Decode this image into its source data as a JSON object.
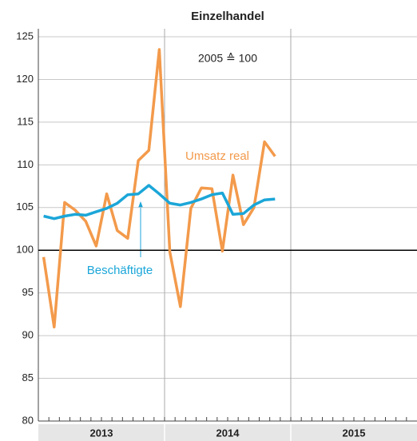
{
  "chart_data": {
    "type": "line",
    "title": "Einzelhandel",
    "note": "2005 ≙ 100",
    "categories": [
      null,
      null,
      null,
      null,
      null,
      null,
      null,
      null,
      null,
      null,
      null,
      null,
      null,
      null,
      null,
      null,
      null,
      null,
      null,
      null,
      null,
      null,
      null,
      null,
      null,
      null,
      null,
      null,
      null,
      null,
      null,
      null,
      null,
      null,
      null,
      null
    ],
    "year_labels": [
      "2013",
      "2014",
      "2015"
    ],
    "series": [
      {
        "name": "Umsatz real",
        "color": "#f39a4b",
        "values": [
          99.2,
          91,
          105.6,
          104.7,
          103.4,
          100.5,
          106.6,
          102.3,
          101.4,
          110.5,
          111.7,
          123.5,
          99.8,
          93.4,
          104.9,
          107.3,
          107.2,
          99.9,
          108.8,
          103,
          105,
          112.7,
          111,
          null,
          null,
          null,
          null,
          null,
          null,
          null,
          null,
          null,
          null,
          null,
          null,
          null
        ]
      },
      {
        "name": "Beschäftigte",
        "color": "#1ba6d8",
        "values": [
          104,
          103.7,
          104,
          104.2,
          104.1,
          104.5,
          104.9,
          105.5,
          106.5,
          106.6,
          107.6,
          106.6,
          105.5,
          105.3,
          105.6,
          106,
          106.5,
          106.7,
          104.2,
          104.3,
          105.3,
          105.9,
          106,
          null,
          null,
          null,
          null,
          null,
          null,
          null,
          null,
          null,
          null,
          null,
          null,
          null
        ]
      }
    ],
    "ylim": [
      80,
      125
    ],
    "yticks": [
      80,
      85,
      90,
      95,
      100,
      105,
      110,
      115,
      120,
      125
    ],
    "grid": true,
    "reference_line": 100
  }
}
